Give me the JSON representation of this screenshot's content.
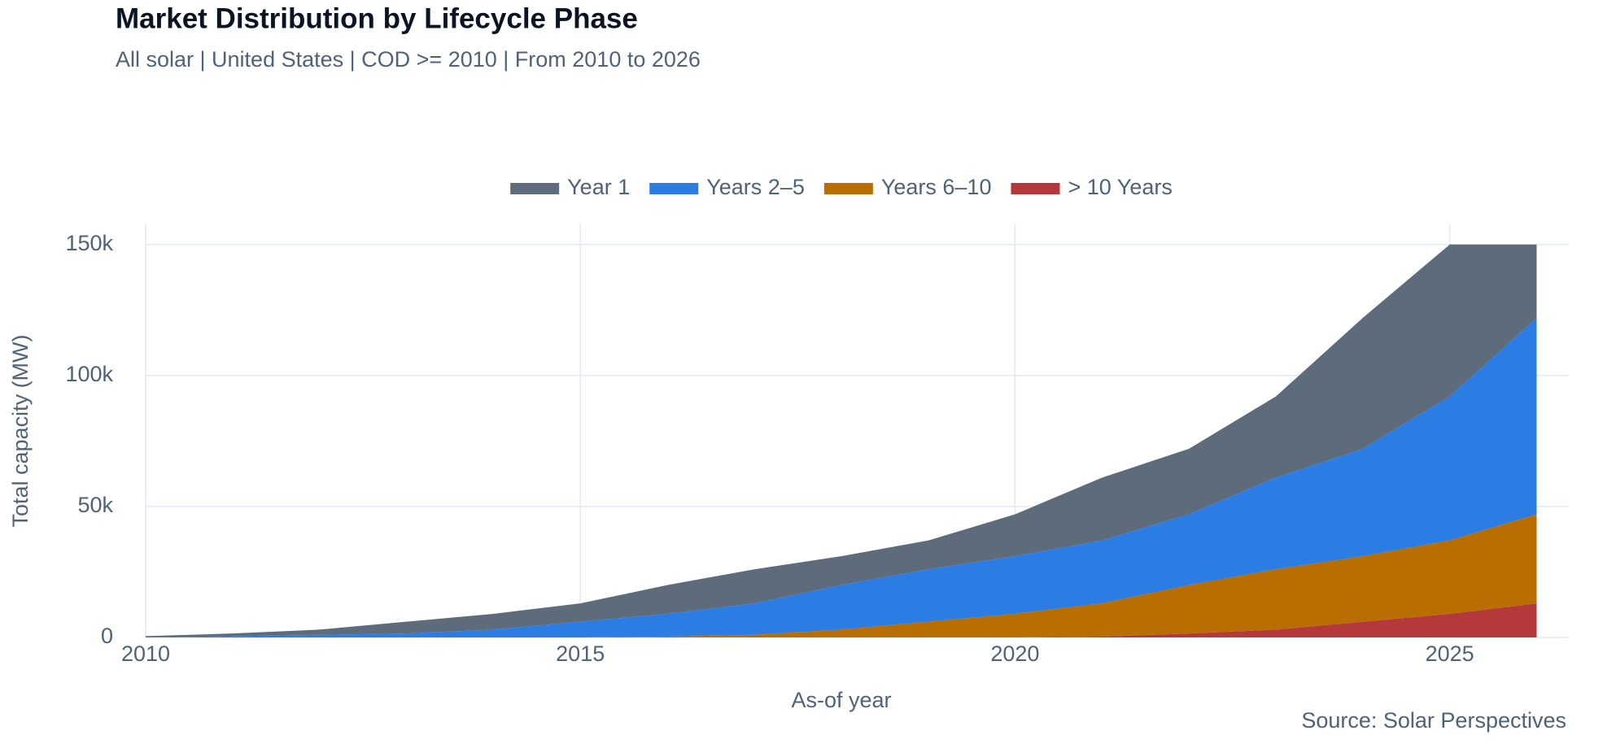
{
  "chart_data": {
    "type": "stacked-area",
    "title": "Market Distribution by Lifecycle Phase",
    "subtitle": "All solar | United States | COD >= 2010 | From 2010 to 2026",
    "x_label": "As-of year",
    "y_label": "Total capacity (MW)",
    "source": "Source: Solar Perspectives",
    "x": [
      2010,
      2011,
      2012,
      2013,
      2014,
      2015,
      2016,
      2017,
      2018,
      2019,
      2020,
      2021,
      2022,
      2023,
      2024,
      2025,
      2026
    ],
    "xlim": [
      2010,
      2026.37
    ],
    "xticks": [
      2010,
      2015,
      2020,
      2025
    ],
    "ylim": [
      0,
      158000
    ],
    "yticks": [
      0,
      {
        "value": 50000,
        "label": "50k"
      },
      {
        "value": 100000,
        "label": "100k"
      },
      {
        "value": 150000,
        "label": "150k"
      }
    ],
    "grid": true,
    "legend": "top",
    "series": [
      {
        "name": "Year 1",
        "color": "#5d6b7b",
        "values": [
          500,
          1000,
          2000,
          4500,
          6000,
          7000,
          11000,
          13000,
          11000,
          11000,
          16000,
          24000,
          25000,
          31000,
          50000,
          58000,
          28000
        ]
      },
      {
        "name": "Years 2–5",
        "color": "#2b7de4",
        "values": [
          0,
          500,
          1000,
          1500,
          3000,
          6000,
          8700,
          12000,
          17000,
          20000,
          22000,
          24000,
          27000,
          35000,
          41000,
          55000,
          75000
        ]
      },
      {
        "name": "Years 6–10",
        "color": "#b86e00",
        "values": [
          0,
          0,
          0,
          0,
          0,
          0,
          300,
          1000,
          3000,
          6000,
          9000,
          12700,
          18500,
          23000,
          25000,
          28000,
          34000
        ]
      },
      {
        "name": "> 10 Years",
        "color": "#b5393a",
        "values": [
          0,
          0,
          0,
          0,
          0,
          0,
          0,
          0,
          0,
          0,
          0,
          300,
          1500,
          3000,
          6000,
          9000,
          13000
        ]
      }
    ]
  }
}
